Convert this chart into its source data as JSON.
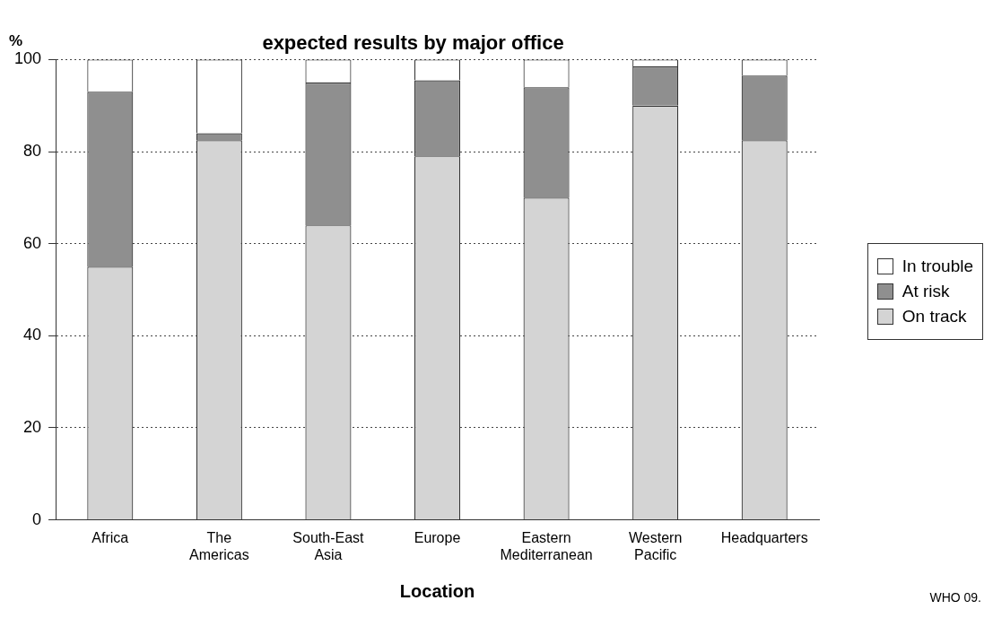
{
  "chart_data": {
    "type": "bar",
    "title": "expected results by major office",
    "xlabel": "Location",
    "ylabel": "%",
    "categories": [
      "Africa",
      "The Americas",
      "South-East Asia",
      "Europe",
      "Eastern Mediterranean",
      "Western Pacific",
      "Headquarters"
    ],
    "series": [
      {
        "name": "On track",
        "color": "#d4d4d4",
        "values": [
          55,
          82.5,
          64,
          79,
          70,
          90,
          82.5
        ]
      },
      {
        "name": "At risk",
        "color": "#8f8f8f",
        "values": [
          38,
          1.5,
          31,
          16.5,
          24,
          8.5,
          14
        ]
      },
      {
        "name": "In trouble",
        "color": "#ffffff",
        "values": [
          7,
          16,
          5,
          4.5,
          6,
          1.5,
          3.5
        ]
      }
    ],
    "stacked": true,
    "ylim": [
      0,
      100
    ],
    "yticks": [
      0,
      20,
      40,
      60,
      80,
      100
    ],
    "grid": "y",
    "legend": "right",
    "annotations": [
      "WHO 09."
    ]
  }
}
